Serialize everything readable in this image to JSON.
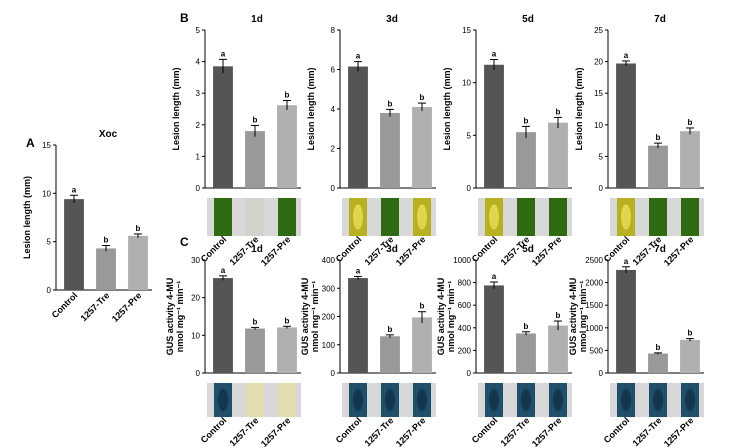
{
  "chart_data": [
    {
      "id": "A",
      "type": "bar",
      "title": "Xoc",
      "panel_label": "A",
      "ylabel": "Lesion length (mm)",
      "ylim": [
        0,
        15
      ],
      "yticks": [
        0,
        5,
        10,
        15
      ],
      "categories": [
        "Control",
        "1257-Tre",
        "1257-Pre"
      ],
      "values": [
        9.4,
        4.3,
        5.6
      ],
      "errors": [
        0.4,
        0.3,
        0.2
      ],
      "significance": [
        "a",
        "b",
        "b"
      ],
      "colors": [
        "#555555",
        "#999999",
        "#b0b0b0"
      ]
    },
    {
      "id": "B1",
      "type": "bar",
      "title": "1d",
      "panel_label": "B",
      "ylabel": "Lesion length (mm)",
      "ylim": [
        0,
        5
      ],
      "yticks": [
        0,
        1,
        2,
        3,
        4,
        5
      ],
      "categories": [
        "Control",
        "1257-Tre",
        "1257-Pre"
      ],
      "values": [
        3.85,
        1.8,
        2.62
      ],
      "errors": [
        0.22,
        0.18,
        0.15
      ],
      "significance": [
        "a",
        "b",
        "b"
      ],
      "colors": [
        "#555555",
        "#999999",
        "#b0b0b0"
      ]
    },
    {
      "id": "B3",
      "type": "bar",
      "title": "3d",
      "ylabel": "Lesion length (mm)",
      "ylim": [
        0,
        8
      ],
      "yticks": [
        0,
        2,
        4,
        6,
        8
      ],
      "categories": [
        "Control",
        "1257-Tre",
        "1257-Pre"
      ],
      "values": [
        6.15,
        3.8,
        4.1
      ],
      "errors": [
        0.25,
        0.18,
        0.2
      ],
      "significance": [
        "a",
        "b",
        "b"
      ],
      "colors": [
        "#555555",
        "#999999",
        "#b0b0b0"
      ]
    },
    {
      "id": "B5",
      "type": "bar",
      "title": "5d",
      "ylabel": "Lesion length (mm)",
      "ylim": [
        0,
        15
      ],
      "yticks": [
        0,
        5,
        10,
        15
      ],
      "categories": [
        "Control",
        "1257-Tre",
        "1257-Pre"
      ],
      "values": [
        11.7,
        5.3,
        6.2
      ],
      "errors": [
        0.5,
        0.55,
        0.5
      ],
      "significance": [
        "a",
        "b",
        "b"
      ],
      "colors": [
        "#555555",
        "#999999",
        "#b0b0b0"
      ]
    },
    {
      "id": "B7",
      "type": "bar",
      "title": "7d",
      "ylabel": "Lesion length (mm)",
      "ylim": [
        0,
        25
      ],
      "yticks": [
        0,
        5,
        10,
        15,
        20,
        25
      ],
      "categories": [
        "Control",
        "1257-Tre",
        "1257-Pre"
      ],
      "values": [
        19.7,
        6.7,
        9.0
      ],
      "errors": [
        0.4,
        0.4,
        0.5
      ],
      "significance": [
        "a",
        "b",
        "b"
      ],
      "colors": [
        "#555555",
        "#999999",
        "#b0b0b0"
      ]
    },
    {
      "id": "C1",
      "type": "bar",
      "title": "1d",
      "panel_label": "C",
      "ylabel": "GUS activity 4-MU nmol mg⁻¹ min⁻¹",
      "ylim": [
        0,
        30
      ],
      "yticks": [
        0,
        10,
        20,
        30
      ],
      "categories": [
        "Control",
        "1257-Tre",
        "1257-Pre"
      ],
      "values": [
        25.2,
        11.8,
        12.1
      ],
      "errors": [
        0.6,
        0.3,
        0.3
      ],
      "significance": [
        "a",
        "b",
        "b"
      ],
      "colors": [
        "#555555",
        "#999999",
        "#b0b0b0"
      ]
    },
    {
      "id": "C3",
      "type": "bar",
      "title": "3d",
      "ylabel": "GUS activity 4-MU nmol mg⁻¹ min⁻¹",
      "ylim": [
        0,
        400
      ],
      "yticks": [
        0,
        100,
        200,
        300,
        400
      ],
      "categories": [
        "Control",
        "1257-Tre",
        "1257-Pre"
      ],
      "values": [
        336,
        130,
        197
      ],
      "errors": [
        6,
        5,
        20
      ],
      "significance": [
        "a",
        "b",
        "b"
      ],
      "colors": [
        "#555555",
        "#999999",
        "#b0b0b0"
      ]
    },
    {
      "id": "C5",
      "type": "bar",
      "title": "5d",
      "ylabel": "GUS activity 4-MU nmol mg⁻¹ min⁻¹",
      "ylim": [
        0,
        1000
      ],
      "yticks": [
        0,
        200,
        400,
        600,
        800,
        1000
      ],
      "categories": [
        "Control",
        "1257-Tre",
        "1257-Pre"
      ],
      "values": [
        775,
        350,
        420
      ],
      "errors": [
        30,
        15,
        40
      ],
      "significance": [
        "a",
        "b",
        "b"
      ],
      "colors": [
        "#555555",
        "#999999",
        "#b0b0b0"
      ]
    },
    {
      "id": "C7",
      "type": "bar",
      "title": "7d",
      "ylabel": "GUS activity 4-MU nmol mg⁻¹ min⁻¹",
      "ylim": [
        0,
        2500
      ],
      "yticks": [
        0,
        500,
        1000,
        1500,
        2000,
        2500
      ],
      "categories": [
        "Control",
        "1257-Tre",
        "1257-Pre"
      ],
      "values": [
        2280,
        430,
        730
      ],
      "errors": [
        70,
        15,
        30
      ],
      "significance": [
        "a",
        "b",
        "b"
      ],
      "colors": [
        "#555555",
        "#999999",
        "#b0b0b0"
      ]
    }
  ],
  "photo_strips": {
    "B": [
      [
        "green",
        "lightgray",
        "green"
      ],
      [
        "yellow",
        "green",
        "yellow"
      ],
      [
        "yellow",
        "green",
        "green"
      ],
      [
        "yellow",
        "green",
        "green"
      ]
    ],
    "C": [
      [
        "blue",
        "paleyellow",
        "paleyellow"
      ],
      [
        "blue",
        "blue",
        "blue"
      ],
      [
        "blue",
        "blue",
        "blue"
      ],
      [
        "blue",
        "blue",
        "blue"
      ]
    ]
  }
}
